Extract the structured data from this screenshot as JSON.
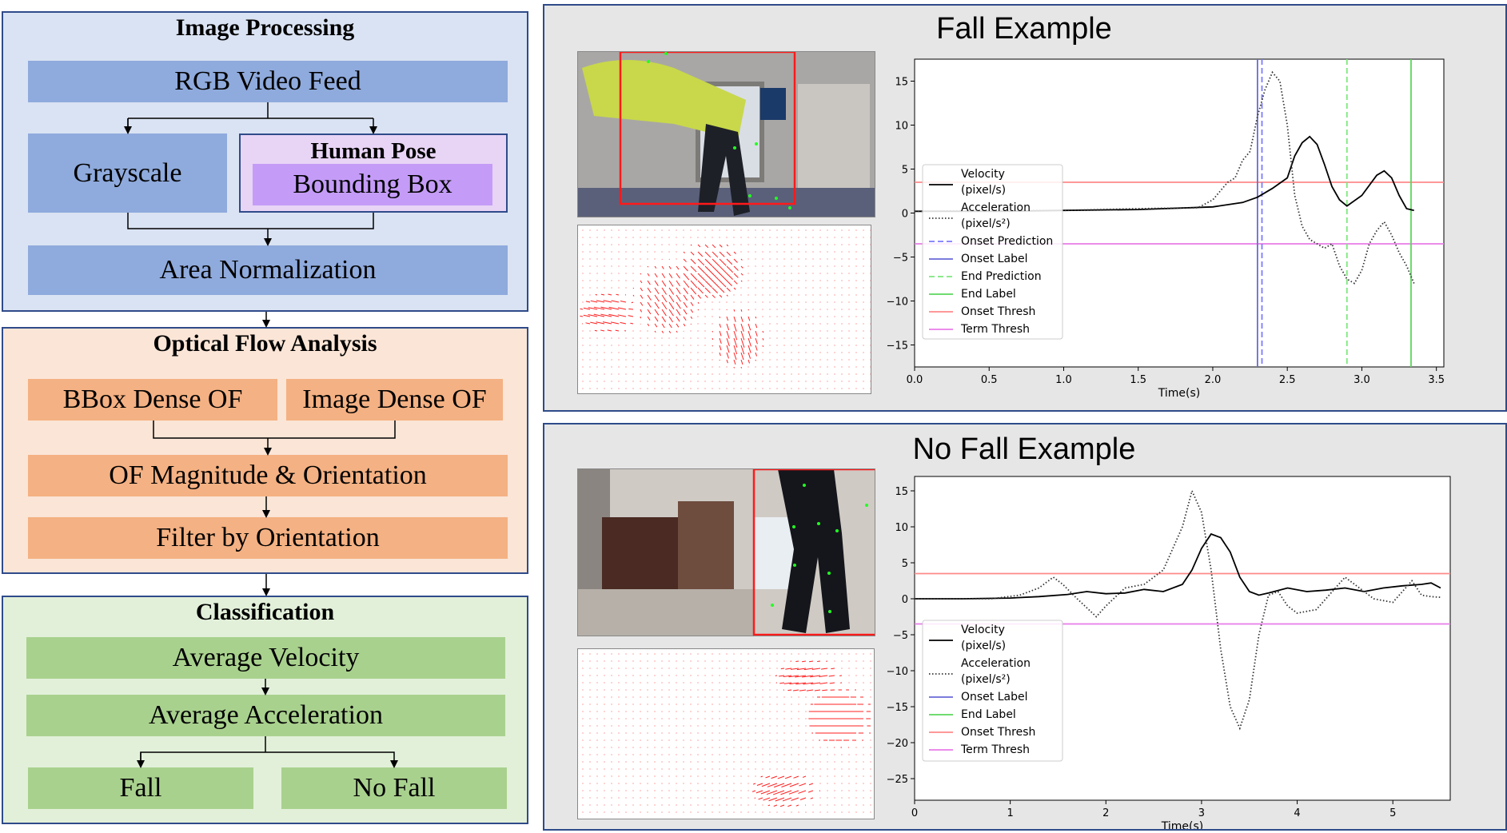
{
  "pipeline": {
    "image_processing": {
      "title": "Image Processing",
      "rgb": "RGB Video Feed",
      "gray": "Grayscale",
      "pose_title": "Human Pose",
      "bbox": "Bounding Box",
      "area": "Area Normalization"
    },
    "optical_flow": {
      "title": "Optical Flow Analysis",
      "bbox_of": "BBox Dense OF",
      "image_of": "Image Dense OF",
      "mag": "OF Magnitude & Orientation",
      "filter": "Filter by Orientation"
    },
    "classification": {
      "title": "Classification",
      "vel": "Average Velocity",
      "acc": "Average Acceleration",
      "fall": "Fall",
      "nofall": "No Fall"
    },
    "colors": {
      "ip_bg": "#dae3f3",
      "ip_box": "#8faadc",
      "pose_bg": "#e8d4f5",
      "pose_box": "#c49cf7",
      "of_bg": "#fbe5d6",
      "of_box": "#f4b183",
      "cl_bg": "#e2f0d9",
      "cl_box": "#a9d18e"
    }
  },
  "examples": {
    "fall": {
      "title": "Fall Example"
    },
    "nofall": {
      "title": "No Fall Example"
    }
  },
  "chart_data": [
    {
      "type": "line",
      "title": "",
      "xlabel": "Time(s)",
      "ylabel": "",
      "xlim": [
        0,
        3.55
      ],
      "ylim": [
        -17.5,
        17.5
      ],
      "xticks": [
        0.0,
        0.5,
        1.0,
        1.5,
        2.0,
        2.5,
        3.0,
        3.5
      ],
      "xtick_labels": [
        "0.0",
        "0.5",
        "1.0",
        "1.5",
        "2.0",
        "2.5",
        "3.0",
        "3.5"
      ],
      "yticks": [
        15,
        10,
        5,
        0,
        -5,
        -10,
        -15
      ],
      "ytick_labels": [
        "15",
        "10",
        "5",
        "0",
        "−5",
        "−10",
        "−15"
      ],
      "series": [
        {
          "name": "Velocity (pixel/s)",
          "color": "#000000",
          "style": "solid",
          "x": [
            0.0,
            0.3,
            0.6,
            1.0,
            1.5,
            2.0,
            2.2,
            2.3,
            2.4,
            2.5,
            2.55,
            2.6,
            2.65,
            2.7,
            2.75,
            2.8,
            2.85,
            2.9,
            3.0,
            3.1,
            3.15,
            3.2,
            3.25,
            3.3,
            3.35
          ],
          "y": [
            0.2,
            0.2,
            0.2,
            0.3,
            0.4,
            0.7,
            1.2,
            1.8,
            2.8,
            4.0,
            6.5,
            8.0,
            8.7,
            7.8,
            5.5,
            3.0,
            1.5,
            0.8,
            2.0,
            4.3,
            4.8,
            4.0,
            2.0,
            0.5,
            0.3
          ]
        },
        {
          "name": "Acceleration (pixel/s²)",
          "color": "#333333",
          "style": "dotted",
          "x": [
            0.0,
            0.5,
            1.0,
            1.5,
            1.9,
            2.0,
            2.1,
            2.15,
            2.2,
            2.25,
            2.3,
            2.35,
            2.4,
            2.45,
            2.5,
            2.55,
            2.6,
            2.65,
            2.7,
            2.75,
            2.8,
            2.85,
            2.9,
            2.95,
            3.0,
            3.05,
            3.1,
            3.15,
            3.2,
            3.25,
            3.3,
            3.35
          ],
          "y": [
            0.2,
            0.3,
            0.3,
            0.5,
            0.6,
            1.5,
            3.5,
            4.0,
            6.0,
            7.0,
            11.0,
            14.0,
            16.0,
            15.0,
            10.0,
            2.0,
            -1.5,
            -3.0,
            -3.5,
            -4.0,
            -3.5,
            -6.0,
            -7.5,
            -8.0,
            -6.5,
            -3.5,
            -2.0,
            -1.0,
            -2.5,
            -4.5,
            -6.0,
            -8.0
          ]
        }
      ],
      "vlines": [
        {
          "name": "Onset Prediction",
          "x": 2.33,
          "color": "#7b7bff",
          "style": "dashed"
        },
        {
          "name": "Onset Label",
          "x": 2.3,
          "color": "#6a6ad8",
          "style": "solid"
        },
        {
          "name": "End Prediction",
          "x": 2.9,
          "color": "#7ee87e",
          "style": "dashed"
        },
        {
          "name": "End Label",
          "x": 3.33,
          "color": "#5cd65c",
          "style": "solid"
        }
      ],
      "hlines": [
        {
          "name": "Onset Thresh",
          "y": 3.5,
          "color": "#ff8a8a"
        },
        {
          "name": "Term Thresh",
          "y": -3.5,
          "color": "#e87be8"
        }
      ],
      "legend": {
        "placement": "center-left",
        "entries": [
          {
            "l1": "Velocity",
            "l2": "(pixel/s)",
            "color": "#000000",
            "style": "solid"
          },
          {
            "l1": "Acceleration",
            "l2": "(pixel/s²)",
            "color": "#333333",
            "style": "dotted"
          },
          {
            "l1": "Onset Prediction",
            "color": "#7b7bff",
            "style": "dashed"
          },
          {
            "l1": "Onset Label",
            "color": "#6a6ad8",
            "style": "solid"
          },
          {
            "l1": "End Prediction",
            "color": "#7ee87e",
            "style": "dashed"
          },
          {
            "l1": "End Label",
            "color": "#5cd65c",
            "style": "solid"
          },
          {
            "l1": "Onset Thresh",
            "color": "#ff8a8a",
            "style": "solid"
          },
          {
            "l1": "Term Thresh",
            "color": "#e87be8",
            "style": "solid"
          }
        ]
      }
    },
    {
      "type": "line",
      "title": "",
      "xlabel": "Time(s)",
      "ylabel": "",
      "xlim": [
        0,
        5.6
      ],
      "ylim": [
        -28,
        17
      ],
      "xticks": [
        0,
        1,
        2,
        3,
        4,
        5
      ],
      "xtick_labels": [
        "0",
        "1",
        "2",
        "3",
        "4",
        "5"
      ],
      "yticks": [
        15,
        10,
        5,
        0,
        -5,
        -10,
        -15,
        -20,
        -25
      ],
      "ytick_labels": [
        "15",
        "10",
        "5",
        "0",
        "−5",
        "−10",
        "−15",
        "−20",
        "−25"
      ],
      "series": [
        {
          "name": "Velocity (pixel/s)",
          "color": "#000000",
          "style": "solid",
          "x": [
            0.0,
            0.5,
            1.0,
            1.3,
            1.6,
            1.8,
            2.0,
            2.2,
            2.4,
            2.6,
            2.8,
            2.9,
            3.0,
            3.1,
            3.2,
            3.3,
            3.4,
            3.5,
            3.6,
            3.7,
            3.9,
            4.1,
            4.3,
            4.5,
            4.7,
            4.9,
            5.1,
            5.3,
            5.4,
            5.5
          ],
          "y": [
            0.0,
            0.0,
            0.1,
            0.3,
            0.6,
            1.0,
            0.7,
            0.8,
            1.3,
            1.0,
            2.0,
            4.0,
            7.0,
            9.0,
            8.5,
            6.5,
            3.0,
            1.0,
            0.5,
            0.8,
            1.5,
            1.0,
            1.2,
            1.5,
            1.0,
            1.5,
            1.8,
            2.0,
            2.2,
            1.5
          ]
        },
        {
          "name": "Acceleration (pixel/s²)",
          "color": "#333333",
          "style": "dotted",
          "x": [
            0.0,
            0.8,
            1.1,
            1.3,
            1.45,
            1.55,
            1.7,
            1.9,
            2.0,
            2.2,
            2.4,
            2.6,
            2.8,
            2.9,
            3.0,
            3.1,
            3.2,
            3.3,
            3.4,
            3.5,
            3.6,
            3.7,
            3.8,
            3.9,
            4.0,
            4.2,
            4.4,
            4.5,
            4.6,
            4.8,
            5.0,
            5.2,
            5.3,
            5.4,
            5.5
          ],
          "y": [
            0.0,
            0.0,
            0.5,
            1.5,
            3.0,
            2.0,
            0.0,
            -2.5,
            -1.0,
            1.5,
            2.0,
            4.0,
            10.0,
            15.0,
            12.0,
            4.0,
            -7.0,
            -15.0,
            -18.0,
            -14.0,
            -5.0,
            0.5,
            1.0,
            -1.0,
            -2.0,
            -1.5,
            1.5,
            3.0,
            2.0,
            0.0,
            -0.5,
            2.5,
            0.5,
            0.3,
            0.2
          ]
        }
      ],
      "hlines": [
        {
          "name": "Onset Thresh",
          "y": 3.5,
          "color": "#ff8a8a"
        },
        {
          "name": "Term Thresh",
          "y": -3.5,
          "color": "#e87be8"
        }
      ],
      "legend": {
        "placement": "lower-left",
        "entries": [
          {
            "l1": "Velocity",
            "l2": "(pixel/s)",
            "color": "#000000",
            "style": "solid"
          },
          {
            "l1": "Acceleration",
            "l2": "(pixel/s²)",
            "color": "#333333",
            "style": "dotted"
          },
          {
            "l1": "Onset Label",
            "color": "#6a6ad8",
            "style": "solid"
          },
          {
            "l1": "End Label",
            "color": "#5cd65c",
            "style": "solid"
          },
          {
            "l1": "Onset Thresh",
            "color": "#ff8a8a",
            "style": "solid"
          },
          {
            "l1": "Term Thresh",
            "color": "#e87be8",
            "style": "solid"
          }
        ]
      }
    }
  ]
}
